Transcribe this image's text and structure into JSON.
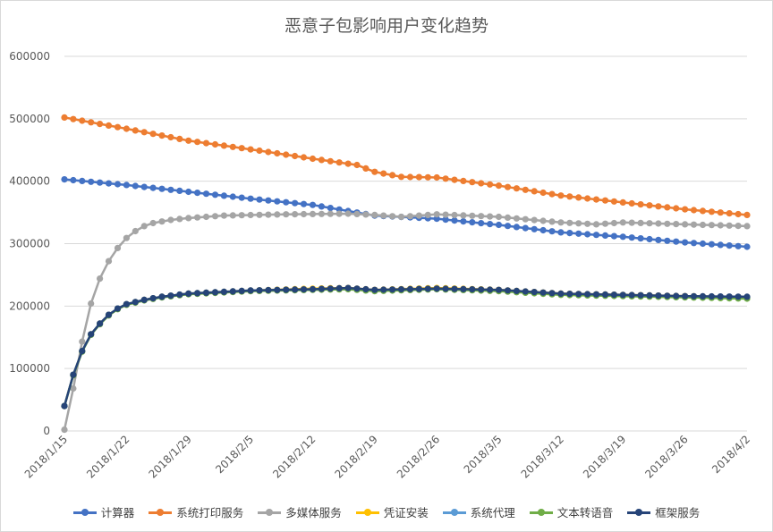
{
  "chart_data": {
    "type": "line",
    "title": "恶意子包影响用户变化趋势",
    "xlabel": "",
    "ylabel": "",
    "ylim": [
      0,
      600000
    ],
    "yticks": [
      "0",
      "100000",
      "200000",
      "300000",
      "400000",
      "500000",
      "600000"
    ],
    "x_tick_labels": [
      "2018/1/15",
      "2018/1/22",
      "2018/1/29",
      "2018/2/5",
      "2018/2/12",
      "2018/2/19",
      "2018/2/26",
      "2018/3/5",
      "2018/3/12",
      "2018/3/19",
      "2018/3/26",
      "2018/4/2"
    ],
    "x_start": "2018/1/15",
    "x_end": "2018/4/2",
    "grid": "horizontal",
    "legend": "bottom",
    "series": [
      {
        "name": "计算器",
        "color": "#4472c4",
        "keypoints": [
          [
            "2018/1/15",
            403000
          ],
          [
            "2018/1/22",
            394000
          ],
          [
            "2018/1/29",
            383000
          ],
          [
            "2018/2/5",
            372000
          ],
          [
            "2018/2/12",
            362000
          ],
          [
            "2018/2/19",
            345000
          ],
          [
            "2018/2/26",
            340000
          ],
          [
            "2018/3/5",
            330000
          ],
          [
            "2018/3/12",
            318000
          ],
          [
            "2018/3/19",
            311000
          ],
          [
            "2018/3/26",
            302000
          ],
          [
            "2018/4/2",
            295000
          ]
        ]
      },
      {
        "name": "系统打印服务",
        "color": "#ed7d31",
        "keypoints": [
          [
            "2018/1/15",
            502000
          ],
          [
            "2018/1/22",
            484000
          ],
          [
            "2018/1/29",
            465000
          ],
          [
            "2018/2/5",
            451000
          ],
          [
            "2018/2/12",
            436000
          ],
          [
            "2018/2/17",
            426000
          ],
          [
            "2018/2/19",
            415000
          ],
          [
            "2018/2/22",
            407000
          ],
          [
            "2018/2/26",
            406000
          ],
          [
            "2018/3/5",
            393000
          ],
          [
            "2018/3/12",
            377000
          ],
          [
            "2018/3/19",
            366000
          ],
          [
            "2018/3/26",
            355000
          ],
          [
            "2018/4/2",
            346000
          ]
        ]
      },
      {
        "name": "多媒体服务",
        "color": "#a5a5a5",
        "keypoints": [
          [
            "2018/1/15",
            2000
          ],
          [
            "2018/1/16",
            68000
          ],
          [
            "2018/1/17",
            143000
          ],
          [
            "2018/1/18",
            204000
          ],
          [
            "2018/1/19",
            244000
          ],
          [
            "2018/1/20",
            272000
          ],
          [
            "2018/1/21",
            293000
          ],
          [
            "2018/1/22",
            309000
          ],
          [
            "2018/1/23",
            320000
          ],
          [
            "2018/1/24",
            328000
          ],
          [
            "2018/1/25",
            333000
          ],
          [
            "2018/1/27",
            338000
          ],
          [
            "2018/1/29",
            341000
          ],
          [
            "2018/2/2",
            345000
          ],
          [
            "2018/2/9",
            347000
          ],
          [
            "2018/2/16",
            348000
          ],
          [
            "2018/2/19",
            346000
          ],
          [
            "2018/2/22",
            343000
          ],
          [
            "2018/2/26",
            347000
          ],
          [
            "2018/3/5",
            343000
          ],
          [
            "2018/3/12",
            334000
          ],
          [
            "2018/3/16",
            331000
          ],
          [
            "2018/3/19",
            334000
          ],
          [
            "2018/3/26",
            331000
          ],
          [
            "2018/4/2",
            328000
          ]
        ]
      },
      {
        "name": "凭证安装",
        "color": "#ffc000",
        "keypoints": [
          [
            "2018/1/15",
            40000
          ],
          [
            "2018/1/16",
            90000
          ],
          [
            "2018/1/17",
            128000
          ],
          [
            "2018/1/18",
            155000
          ],
          [
            "2018/1/19",
            172000
          ],
          [
            "2018/1/20",
            186000
          ],
          [
            "2018/1/21",
            196000
          ],
          [
            "2018/1/22",
            203000
          ],
          [
            "2018/1/24",
            210000
          ],
          [
            "2018/1/26",
            215000
          ],
          [
            "2018/1/29",
            220000
          ],
          [
            "2018/2/5",
            225000
          ],
          [
            "2018/2/12",
            228000
          ],
          [
            "2018/2/16",
            229000
          ],
          [
            "2018/2/19",
            226000
          ],
          [
            "2018/2/26",
            229000
          ],
          [
            "2018/3/5",
            226000
          ],
          [
            "2018/3/12",
            220000
          ],
          [
            "2018/3/19",
            218000
          ],
          [
            "2018/3/26",
            216000
          ],
          [
            "2018/4/2",
            214000
          ]
        ]
      },
      {
        "name": "系统代理",
        "color": "#5b9bd5",
        "keypoints": [
          [
            "2018/1/15",
            40000
          ],
          [
            "2018/1/16",
            90000
          ],
          [
            "2018/1/17",
            128000
          ],
          [
            "2018/1/18",
            155000
          ],
          [
            "2018/1/19",
            172000
          ],
          [
            "2018/1/20",
            186000
          ],
          [
            "2018/1/21",
            196000
          ],
          [
            "2018/1/22",
            203000
          ],
          [
            "2018/1/24",
            210000
          ],
          [
            "2018/1/26",
            215000
          ],
          [
            "2018/1/29",
            220000
          ],
          [
            "2018/2/5",
            225000
          ],
          [
            "2018/2/12",
            227000
          ],
          [
            "2018/2/16",
            228000
          ],
          [
            "2018/2/19",
            225000
          ],
          [
            "2018/2/26",
            228000
          ],
          [
            "2018/3/5",
            225000
          ],
          [
            "2018/3/12",
            219000
          ],
          [
            "2018/3/19",
            217000
          ],
          [
            "2018/3/26",
            215000
          ],
          [
            "2018/4/2",
            214000
          ]
        ]
      },
      {
        "name": "文本转语音",
        "color": "#70ad47",
        "keypoints": [
          [
            "2018/1/15",
            40000
          ],
          [
            "2018/1/16",
            89000
          ],
          [
            "2018/1/17",
            127000
          ],
          [
            "2018/1/18",
            154000
          ],
          [
            "2018/1/19",
            171000
          ],
          [
            "2018/1/20",
            185000
          ],
          [
            "2018/1/21",
            195000
          ],
          [
            "2018/1/22",
            202000
          ],
          [
            "2018/1/24",
            209000
          ],
          [
            "2018/1/26",
            214000
          ],
          [
            "2018/1/29",
            219000
          ],
          [
            "2018/2/5",
            224000
          ],
          [
            "2018/2/12",
            226000
          ],
          [
            "2018/2/16",
            227000
          ],
          [
            "2018/2/19",
            224000
          ],
          [
            "2018/2/26",
            227000
          ],
          [
            "2018/3/5",
            224000
          ],
          [
            "2018/3/12",
            218000
          ],
          [
            "2018/3/19",
            216000
          ],
          [
            "2018/3/26",
            214000
          ],
          [
            "2018/4/2",
            212000
          ]
        ]
      },
      {
        "name": "框架服务",
        "color": "#264478",
        "keypoints": [
          [
            "2018/1/15",
            40000
          ],
          [
            "2018/1/16",
            90000
          ],
          [
            "2018/1/17",
            128000
          ],
          [
            "2018/1/18",
            155000
          ],
          [
            "2018/1/19",
            172000
          ],
          [
            "2018/1/20",
            186000
          ],
          [
            "2018/1/21",
            196000
          ],
          [
            "2018/1/22",
            203000
          ],
          [
            "2018/1/24",
            210000
          ],
          [
            "2018/1/26",
            215000
          ],
          [
            "2018/1/29",
            220000
          ],
          [
            "2018/2/5",
            225000
          ],
          [
            "2018/2/12",
            227000
          ],
          [
            "2018/2/16",
            229000
          ],
          [
            "2018/2/19",
            226000
          ],
          [
            "2018/2/26",
            228000
          ],
          [
            "2018/3/5",
            226000
          ],
          [
            "2018/3/12",
            220000
          ],
          [
            "2018/3/19",
            218000
          ],
          [
            "2018/3/26",
            216000
          ],
          [
            "2018/4/2",
            215000
          ]
        ]
      }
    ]
  }
}
